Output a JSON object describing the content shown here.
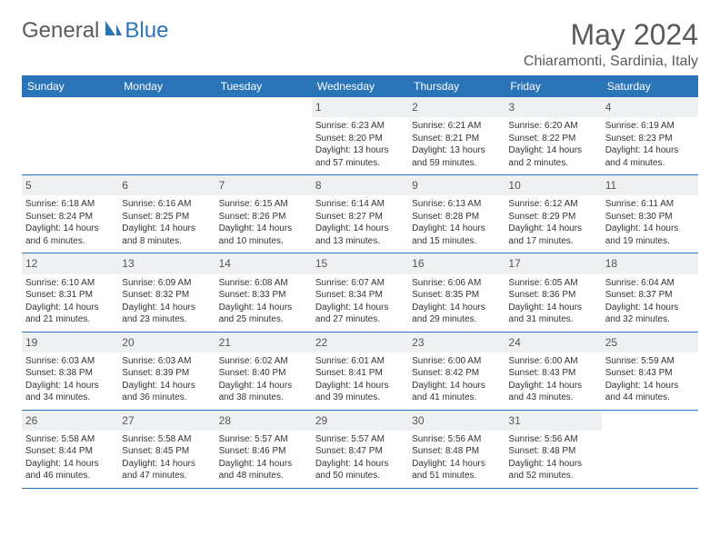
{
  "logo": {
    "part1": "General",
    "part2": "Blue"
  },
  "title": "May 2024",
  "location": "Chiaramonti, Sardinia, Italy",
  "colors": {
    "header_bg": "#2a74b8",
    "header_text": "#ffffff",
    "daynum_bg": "#eef0f2",
    "text": "#333333",
    "title_text": "#5a5a5a"
  },
  "weekdays": [
    "Sunday",
    "Monday",
    "Tuesday",
    "Wednesday",
    "Thursday",
    "Friday",
    "Saturday"
  ],
  "weeks": [
    [
      null,
      null,
      null,
      {
        "n": "1",
        "sr": "Sunrise: 6:23 AM",
        "ss": "Sunset: 8:20 PM",
        "d1": "Daylight: 13 hours",
        "d2": "and 57 minutes."
      },
      {
        "n": "2",
        "sr": "Sunrise: 6:21 AM",
        "ss": "Sunset: 8:21 PM",
        "d1": "Daylight: 13 hours",
        "d2": "and 59 minutes."
      },
      {
        "n": "3",
        "sr": "Sunrise: 6:20 AM",
        "ss": "Sunset: 8:22 PM",
        "d1": "Daylight: 14 hours",
        "d2": "and 2 minutes."
      },
      {
        "n": "4",
        "sr": "Sunrise: 6:19 AM",
        "ss": "Sunset: 8:23 PM",
        "d1": "Daylight: 14 hours",
        "d2": "and 4 minutes."
      }
    ],
    [
      {
        "n": "5",
        "sr": "Sunrise: 6:18 AM",
        "ss": "Sunset: 8:24 PM",
        "d1": "Daylight: 14 hours",
        "d2": "and 6 minutes."
      },
      {
        "n": "6",
        "sr": "Sunrise: 6:16 AM",
        "ss": "Sunset: 8:25 PM",
        "d1": "Daylight: 14 hours",
        "d2": "and 8 minutes."
      },
      {
        "n": "7",
        "sr": "Sunrise: 6:15 AM",
        "ss": "Sunset: 8:26 PM",
        "d1": "Daylight: 14 hours",
        "d2": "and 10 minutes."
      },
      {
        "n": "8",
        "sr": "Sunrise: 6:14 AM",
        "ss": "Sunset: 8:27 PM",
        "d1": "Daylight: 14 hours",
        "d2": "and 13 minutes."
      },
      {
        "n": "9",
        "sr": "Sunrise: 6:13 AM",
        "ss": "Sunset: 8:28 PM",
        "d1": "Daylight: 14 hours",
        "d2": "and 15 minutes."
      },
      {
        "n": "10",
        "sr": "Sunrise: 6:12 AM",
        "ss": "Sunset: 8:29 PM",
        "d1": "Daylight: 14 hours",
        "d2": "and 17 minutes."
      },
      {
        "n": "11",
        "sr": "Sunrise: 6:11 AM",
        "ss": "Sunset: 8:30 PM",
        "d1": "Daylight: 14 hours",
        "d2": "and 19 minutes."
      }
    ],
    [
      {
        "n": "12",
        "sr": "Sunrise: 6:10 AM",
        "ss": "Sunset: 8:31 PM",
        "d1": "Daylight: 14 hours",
        "d2": "and 21 minutes."
      },
      {
        "n": "13",
        "sr": "Sunrise: 6:09 AM",
        "ss": "Sunset: 8:32 PM",
        "d1": "Daylight: 14 hours",
        "d2": "and 23 minutes."
      },
      {
        "n": "14",
        "sr": "Sunrise: 6:08 AM",
        "ss": "Sunset: 8:33 PM",
        "d1": "Daylight: 14 hours",
        "d2": "and 25 minutes."
      },
      {
        "n": "15",
        "sr": "Sunrise: 6:07 AM",
        "ss": "Sunset: 8:34 PM",
        "d1": "Daylight: 14 hours",
        "d2": "and 27 minutes."
      },
      {
        "n": "16",
        "sr": "Sunrise: 6:06 AM",
        "ss": "Sunset: 8:35 PM",
        "d1": "Daylight: 14 hours",
        "d2": "and 29 minutes."
      },
      {
        "n": "17",
        "sr": "Sunrise: 6:05 AM",
        "ss": "Sunset: 8:36 PM",
        "d1": "Daylight: 14 hours",
        "d2": "and 31 minutes."
      },
      {
        "n": "18",
        "sr": "Sunrise: 6:04 AM",
        "ss": "Sunset: 8:37 PM",
        "d1": "Daylight: 14 hours",
        "d2": "and 32 minutes."
      }
    ],
    [
      {
        "n": "19",
        "sr": "Sunrise: 6:03 AM",
        "ss": "Sunset: 8:38 PM",
        "d1": "Daylight: 14 hours",
        "d2": "and 34 minutes."
      },
      {
        "n": "20",
        "sr": "Sunrise: 6:03 AM",
        "ss": "Sunset: 8:39 PM",
        "d1": "Daylight: 14 hours",
        "d2": "and 36 minutes."
      },
      {
        "n": "21",
        "sr": "Sunrise: 6:02 AM",
        "ss": "Sunset: 8:40 PM",
        "d1": "Daylight: 14 hours",
        "d2": "and 38 minutes."
      },
      {
        "n": "22",
        "sr": "Sunrise: 6:01 AM",
        "ss": "Sunset: 8:41 PM",
        "d1": "Daylight: 14 hours",
        "d2": "and 39 minutes."
      },
      {
        "n": "23",
        "sr": "Sunrise: 6:00 AM",
        "ss": "Sunset: 8:42 PM",
        "d1": "Daylight: 14 hours",
        "d2": "and 41 minutes."
      },
      {
        "n": "24",
        "sr": "Sunrise: 6:00 AM",
        "ss": "Sunset: 8:43 PM",
        "d1": "Daylight: 14 hours",
        "d2": "and 43 minutes."
      },
      {
        "n": "25",
        "sr": "Sunrise: 5:59 AM",
        "ss": "Sunset: 8:43 PM",
        "d1": "Daylight: 14 hours",
        "d2": "and 44 minutes."
      }
    ],
    [
      {
        "n": "26",
        "sr": "Sunrise: 5:58 AM",
        "ss": "Sunset: 8:44 PM",
        "d1": "Daylight: 14 hours",
        "d2": "and 46 minutes."
      },
      {
        "n": "27",
        "sr": "Sunrise: 5:58 AM",
        "ss": "Sunset: 8:45 PM",
        "d1": "Daylight: 14 hours",
        "d2": "and 47 minutes."
      },
      {
        "n": "28",
        "sr": "Sunrise: 5:57 AM",
        "ss": "Sunset: 8:46 PM",
        "d1": "Daylight: 14 hours",
        "d2": "and 48 minutes."
      },
      {
        "n": "29",
        "sr": "Sunrise: 5:57 AM",
        "ss": "Sunset: 8:47 PM",
        "d1": "Daylight: 14 hours",
        "d2": "and 50 minutes."
      },
      {
        "n": "30",
        "sr": "Sunrise: 5:56 AM",
        "ss": "Sunset: 8:48 PM",
        "d1": "Daylight: 14 hours",
        "d2": "and 51 minutes."
      },
      {
        "n": "31",
        "sr": "Sunrise: 5:56 AM",
        "ss": "Sunset: 8:48 PM",
        "d1": "Daylight: 14 hours",
        "d2": "and 52 minutes."
      },
      null
    ]
  ]
}
